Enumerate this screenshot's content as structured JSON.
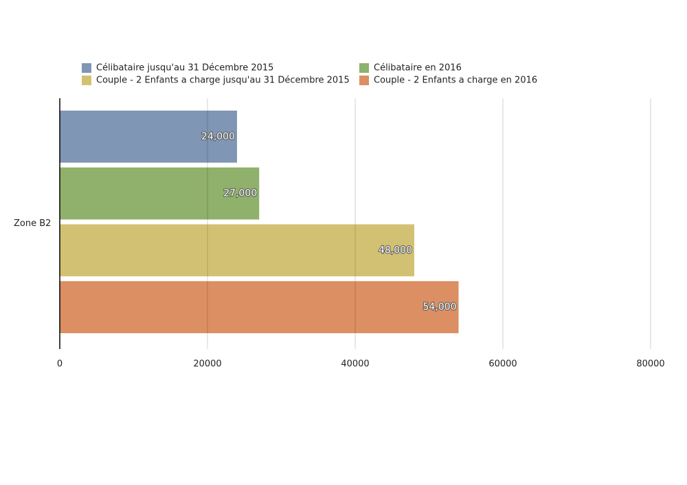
{
  "chart_data": {
    "type": "bar",
    "orientation": "horizontal",
    "categories": [
      "Zone B2"
    ],
    "series": [
      {
        "name": "Célibataire jusqu'au 31 Décembre 2015",
        "color": "#7f96b4",
        "values": [
          24000
        ],
        "value_labels": [
          "24,000"
        ]
      },
      {
        "name": "Célibataire en 2016",
        "color": "#8fb16b",
        "values": [
          27000
        ],
        "value_labels": [
          "27,000"
        ]
      },
      {
        "name": "Couple - 2 Enfants a charge jusqu'au 31 Décembre 2015",
        "color": "#d3c173",
        "values": [
          48000
        ],
        "value_labels": [
          "48,000"
        ]
      },
      {
        "name": "Couple - 2 Enfants a charge en 2016",
        "color": "#db8f63",
        "values": [
          54000
        ],
        "value_labels": [
          "54,000"
        ]
      }
    ],
    "xlim": [
      0,
      80000
    ],
    "xticks": [
      0,
      20000,
      40000,
      60000,
      80000
    ],
    "grid": true,
    "legend": "top"
  }
}
